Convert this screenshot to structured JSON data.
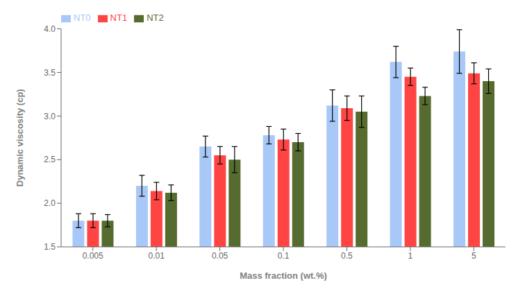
{
  "chart_data": {
    "type": "bar",
    "x_label": "Mass fraction (wt.%)",
    "y_label": "Dynamic viscosity (cp)",
    "categories": [
      "0.005",
      "0.01",
      "0.05",
      "0.1",
      "0.5",
      "1",
      "5"
    ],
    "series": [
      {
        "name": "NT0",
        "color": "#A8C8F8",
        "values": [
          1.8,
          2.2,
          2.65,
          2.78,
          3.12,
          3.62,
          3.74
        ],
        "errors": [
          0.08,
          0.12,
          0.12,
          0.1,
          0.18,
          0.18,
          0.25
        ]
      },
      {
        "name": "NT1",
        "color": "#FF4444",
        "values": [
          1.8,
          2.14,
          2.55,
          2.73,
          3.09,
          3.45,
          3.49
        ],
        "errors": [
          0.08,
          0.1,
          0.1,
          0.12,
          0.14,
          0.1,
          0.12
        ]
      },
      {
        "name": "NT2",
        "color": "#556B2F",
        "values": [
          1.8,
          2.12,
          2.5,
          2.7,
          3.05,
          3.23,
          3.4
        ],
        "errors": [
          0.07,
          0.09,
          0.15,
          0.1,
          0.18,
          0.1,
          0.14
        ]
      }
    ],
    "ylim": [
      1.5,
      4.0
    ],
    "yticks": [
      1.5,
      {
        "value": 2.0,
        "label": "2.0"
      },
      2.5,
      {
        "value": 3.0,
        "label": "3.0"
      },
      3.5,
      {
        "value": 4.0,
        "label": "4.0"
      }
    ],
    "grid": false,
    "legend": "upper left"
  }
}
